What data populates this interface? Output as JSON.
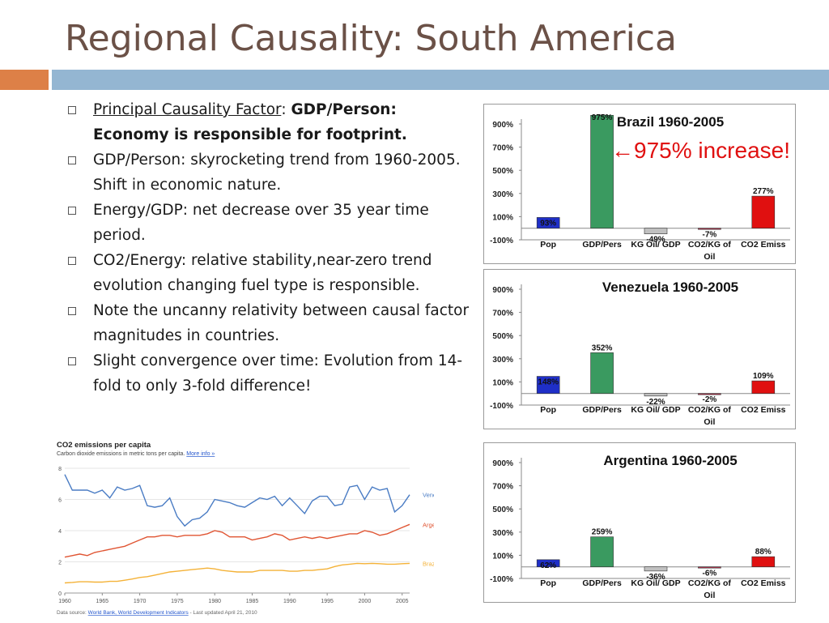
{
  "slide": {
    "title": "Regional Causality: South America"
  },
  "bullets": [
    {
      "underline": "Principal Causality Factor",
      "text": ":  ",
      "bold": "GDP/Person: Economy is responsible for footprint."
    },
    {
      "underline": "",
      "text": "GDP/Person:  skyrocketing trend from 1960-2005.  Shift in economic nature.",
      "bold": ""
    },
    {
      "underline": "",
      "text": "Energy/GDP: net decrease over 35 year time period.",
      "bold": ""
    },
    {
      "underline": "",
      "text": "CO2/Energy: relative stability,near-zero trend evolution  changing fuel type is responsible.",
      "bold": ""
    },
    {
      "underline": "",
      "text": "Note the uncanny relativity between causal factor magnitudes in countries.",
      "bold": ""
    },
    {
      "underline": "",
      "text": " Slight convergence over time:  Evolution from 14-fold to only 3-fold difference!",
      "bold": ""
    }
  ],
  "annotation": {
    "arrow": "←",
    "text": "975% increase!",
    "color": "#e01010"
  },
  "colors": {
    "Pop": "#1f2fc8",
    "GDP/Pers": "#3a9a60",
    "KG Oil/ GDP": "#c0c0c0",
    "CO2/KG of Oil": "#a8324a",
    "CO2 Emiss": "#e01010"
  },
  "chart_data": [
    {
      "type": "bar",
      "title": "Brazil 1960-2005",
      "categories": [
        "Pop",
        "GDP/Pers",
        "KG Oil/ GDP",
        "CO2/KG of Oil",
        "CO2 Emiss"
      ],
      "values": [
        93,
        975,
        -49,
        -7,
        277
      ],
      "data_labels": [
        "93%",
        "975%",
        "-49%",
        "-7%",
        "277%"
      ],
      "ylim": [
        -100,
        900
      ],
      "yticks": [
        "900%",
        "700%",
        "500%",
        "300%",
        "100%",
        "-100%"
      ],
      "ytick_values": [
        900,
        700,
        500,
        300,
        100,
        -100
      ]
    },
    {
      "type": "bar",
      "title": "Venezuela 1960-2005",
      "categories": [
        "Pop",
        "GDP/Pers",
        "KG Oil/ GDP",
        "CO2/KG of Oil",
        "CO2 Emiss"
      ],
      "values": [
        148,
        352,
        -22,
        -2,
        109
      ],
      "data_labels": [
        "148%",
        "352%",
        "-22%",
        "-2%",
        "109%"
      ],
      "ylim": [
        -100,
        900
      ],
      "yticks": [
        "900%",
        "700%",
        "500%",
        "300%",
        "100%",
        "-100%"
      ],
      "ytick_values": [
        900,
        700,
        500,
        300,
        100,
        -100
      ]
    },
    {
      "type": "bar",
      "title": "Argentina 1960-2005",
      "categories": [
        "Pop",
        "GDP/Pers",
        "KG Oil/ GDP",
        "CO2/KG of Oil",
        "CO2 Emiss"
      ],
      "values": [
        62,
        259,
        -36,
        -6,
        88
      ],
      "data_labels": [
        "62%",
        "259%",
        "-36%",
        "-6%",
        "88%"
      ],
      "ylim": [
        -100,
        900
      ],
      "yticks": [
        "900%",
        "700%",
        "500%",
        "300%",
        "100%",
        "-100%"
      ],
      "ytick_values": [
        900,
        700,
        500,
        300,
        100,
        -100
      ]
    },
    {
      "type": "line",
      "title": "CO2 emissions per capita",
      "subtitle": "Carbon dioxide emissions in metric tons per capita.",
      "more_info": "More info »",
      "source_prefix": "Data source: ",
      "source_link": "World Bank, World Development Indicators",
      "source_suffix": " - Last updated April 21, 2010",
      "ylim": [
        0,
        8
      ],
      "yticks": [
        0,
        2,
        4,
        6,
        8
      ],
      "xlim": [
        1960,
        2006
      ],
      "xticks": [
        1960,
        1965,
        1970,
        1975,
        1980,
        1985,
        1990,
        1995,
        2000,
        2005
      ],
      "series": [
        {
          "name": "Venezuela",
          "color": "#4a7cc4",
          "x": [
            1960,
            1961,
            1962,
            1963,
            1964,
            1965,
            1966,
            1967,
            1968,
            1969,
            1970,
            1971,
            1972,
            1973,
            1974,
            1975,
            1976,
            1977,
            1978,
            1979,
            1980,
            1981,
            1982,
            1983,
            1984,
            1985,
            1986,
            1987,
            1988,
            1989,
            1990,
            1991,
            1992,
            1993,
            1994,
            1995,
            1996,
            1997,
            1998,
            1999,
            2000,
            2001,
            2002,
            2003,
            2004,
            2005,
            2006
          ],
          "values": [
            7.6,
            6.6,
            6.6,
            6.6,
            6.4,
            6.6,
            6.1,
            6.8,
            6.6,
            6.7,
            6.9,
            5.6,
            5.5,
            5.6,
            6.1,
            4.9,
            4.3,
            4.7,
            4.8,
            5.2,
            6.0,
            5.9,
            5.8,
            5.6,
            5.5,
            5.8,
            6.1,
            6.0,
            6.2,
            5.6,
            6.1,
            5.6,
            5.1,
            5.9,
            6.2,
            6.2,
            5.6,
            5.7,
            6.8,
            6.9,
            6.0,
            6.8,
            6.6,
            6.7,
            5.2,
            5.6,
            6.3
          ]
        },
        {
          "name": "Argentina",
          "color": "#e05533",
          "x": [
            1960,
            1961,
            1962,
            1963,
            1964,
            1965,
            1966,
            1967,
            1968,
            1969,
            1970,
            1971,
            1972,
            1973,
            1974,
            1975,
            1976,
            1977,
            1978,
            1979,
            1980,
            1981,
            1982,
            1983,
            1984,
            1985,
            1986,
            1987,
            1988,
            1989,
            1990,
            1991,
            1992,
            1993,
            1994,
            1995,
            1996,
            1997,
            1998,
            1999,
            2000,
            2001,
            2002,
            2003,
            2004,
            2005,
            2006
          ],
          "values": [
            2.3,
            2.4,
            2.5,
            2.4,
            2.6,
            2.7,
            2.8,
            2.9,
            3.0,
            3.2,
            3.4,
            3.6,
            3.6,
            3.7,
            3.7,
            3.6,
            3.7,
            3.7,
            3.7,
            3.8,
            4.0,
            3.9,
            3.6,
            3.6,
            3.6,
            3.4,
            3.5,
            3.6,
            3.8,
            3.7,
            3.4,
            3.5,
            3.6,
            3.5,
            3.6,
            3.5,
            3.6,
            3.7,
            3.8,
            3.8,
            4.0,
            3.9,
            3.7,
            3.8,
            4.0,
            4.2,
            4.4
          ]
        },
        {
          "name": "Brazil",
          "color": "#f4b238",
          "x": [
            1960,
            1961,
            1962,
            1963,
            1964,
            1965,
            1966,
            1967,
            1968,
            1969,
            1970,
            1971,
            1972,
            1973,
            1974,
            1975,
            1976,
            1977,
            1978,
            1979,
            1980,
            1981,
            1982,
            1983,
            1984,
            1985,
            1986,
            1987,
            1988,
            1989,
            1990,
            1991,
            1992,
            1993,
            1994,
            1995,
            1996,
            1997,
            1998,
            1999,
            2000,
            2001,
            2002,
            2003,
            2004,
            2005,
            2006
          ],
          "values": [
            0.65,
            0.68,
            0.72,
            0.72,
            0.7,
            0.7,
            0.75,
            0.75,
            0.82,
            0.9,
            1.0,
            1.05,
            1.15,
            1.25,
            1.35,
            1.4,
            1.45,
            1.5,
            1.55,
            1.6,
            1.55,
            1.45,
            1.4,
            1.35,
            1.35,
            1.35,
            1.45,
            1.45,
            1.45,
            1.45,
            1.4,
            1.4,
            1.45,
            1.45,
            1.5,
            1.55,
            1.7,
            1.8,
            1.85,
            1.9,
            1.88,
            1.9,
            1.88,
            1.85,
            1.85,
            1.88,
            1.9
          ]
        }
      ]
    }
  ]
}
